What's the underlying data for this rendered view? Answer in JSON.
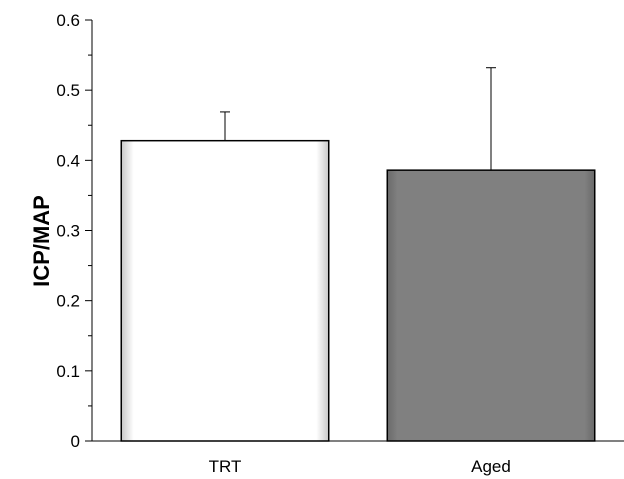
{
  "chart_data": {
    "type": "bar",
    "title": "",
    "xlabel": "",
    "ylabel": "ICP/MAP",
    "categories": [
      "TRT",
      "Aged"
    ],
    "values": [
      0.428,
      0.386
    ],
    "error_upper": [
      0.469,
      0.532
    ],
    "ylim": [
      0,
      0.6
    ],
    "yticks": [
      "0",
      "0.1",
      "0.2",
      "0.3",
      "0.4",
      "0.5",
      "0.6"
    ],
    "grid": false,
    "legend": "none",
    "bar_colors": [
      "#ffffff",
      "#808080"
    ]
  }
}
